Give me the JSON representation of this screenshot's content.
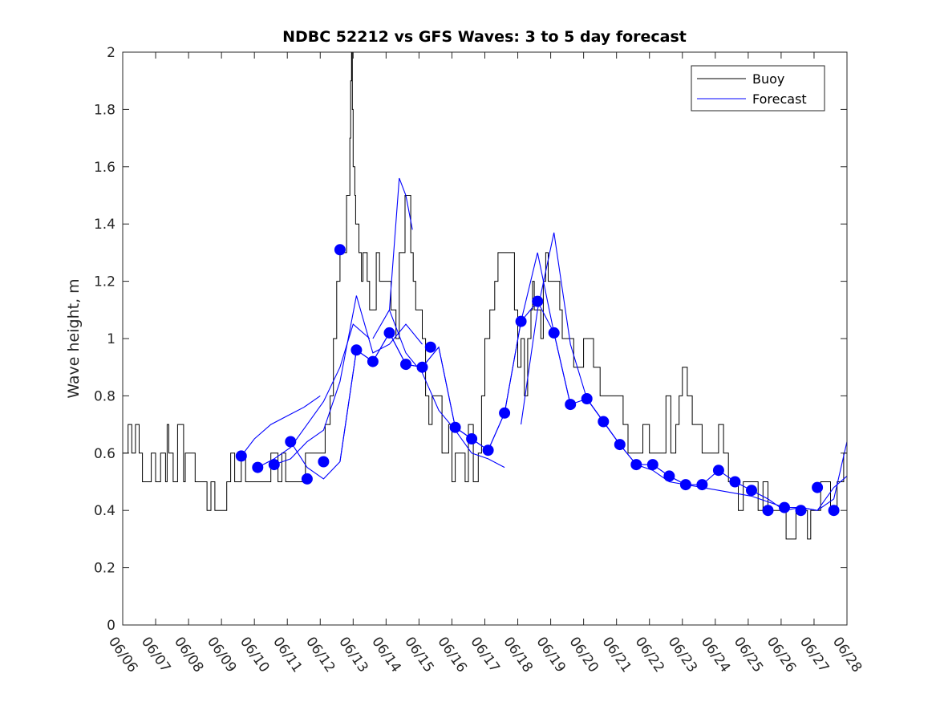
{
  "chart_data": {
    "type": "line",
    "title": "NDBC 52212 vs GFS Waves: 3 to 5 day forecast",
    "xlabel": "",
    "ylabel": "Wave height, m",
    "xlim": [
      "06/06",
      "06/28"
    ],
    "ylim": [
      0,
      2
    ],
    "yticks": [
      0,
      0.2,
      0.4,
      0.6,
      0.8,
      1,
      1.2,
      1.4,
      1.6,
      1.8,
      2
    ],
    "ytick_labels": [
      "0",
      "0.2",
      "0.4",
      "0.6",
      "0.8",
      "1",
      "1.2",
      "1.4",
      "1.6",
      "1.8",
      "2"
    ],
    "xtick_labels": [
      "06/06",
      "06/07",
      "06/08",
      "06/09",
      "06/10",
      "06/11",
      "06/12",
      "06/13",
      "06/14",
      "06/15",
      "06/16",
      "06/17",
      "06/18",
      "06/19",
      "06/20",
      "06/21",
      "06/22",
      "06/23",
      "06/24",
      "06/25",
      "06/26",
      "06/27",
      "06/28"
    ],
    "grid": false,
    "legend": {
      "position": "top-right",
      "entries": [
        "Buoy",
        "Forecast"
      ]
    },
    "colors": {
      "buoy": "#000000",
      "forecast": "#0000ff",
      "markers": "#0000ff"
    },
    "buoy": {
      "name": "Buoy",
      "x_day": [
        0,
        0.05,
        0.5,
        0.6,
        1.0,
        1.3,
        1.4,
        1.8,
        1.9,
        2.2,
        2.8,
        3.4,
        3.6,
        4.4,
        4.6,
        5.3,
        5.8,
        6.0,
        6.3,
        6.5,
        6.7,
        6.9,
        6.95,
        7.0,
        7.05,
        7.1,
        7.25,
        7.35,
        7.5,
        7.7,
        7.9,
        8.0,
        8.3,
        8.5,
        8.65,
        8.75,
        8.9,
        9.1,
        9.3,
        9.5,
        9.7,
        9.9,
        10.1,
        10.3,
        10.5,
        10.8,
        11.0,
        11.3,
        11.5,
        11.8,
        12.0,
        12.2,
        12.4,
        12.5,
        12.7,
        12.85,
        13.0,
        13.2,
        13.35,
        13.5,
        13.7,
        13.9,
        14.1,
        14.3,
        14.5,
        14.7,
        14.9,
        15.2,
        15.5,
        15.8,
        16.0,
        16.2,
        16.5,
        16.8,
        17.0,
        17.3,
        17.6,
        17.9,
        18.1,
        18.4,
        18.7,
        19.0,
        19.3,
        19.6,
        20.0,
        20.3,
        20.6,
        20.8,
        21.0,
        21.2,
        21.4,
        21.6,
        21.8,
        22.0
      ],
      "values": [
        0.6,
        0.7,
        0.6,
        0.5,
        0.6,
        0.5,
        0.6,
        0.7,
        0.6,
        0.5,
        0.4,
        0.5,
        0.5,
        0.5,
        0.6,
        0.5,
        0.6,
        0.6,
        0.8,
        1.2,
        1.4,
        1.7,
        2.0,
        1.6,
        1.5,
        1.4,
        1.2,
        1.3,
        1.1,
        1.3,
        1.1,
        1.2,
        1.0,
        1.3,
        1.6,
        1.3,
        1.1,
        1.0,
        0.8,
        0.8,
        0.7,
        0.7,
        0.6,
        0.6,
        0.6,
        0.7,
        0.9,
        1.2,
        1.3,
        1.3,
        0.9,
        0.9,
        1.1,
        1.1,
        1.0,
        1.3,
        1.1,
        1.2,
        1.0,
        1.0,
        0.9,
        0.9,
        1.0,
        0.9,
        0.8,
        0.7,
        0.8,
        0.7,
        0.6,
        0.7,
        0.7,
        0.6,
        0.7,
        0.7,
        0.8,
        0.8,
        0.6,
        0.6,
        0.7,
        0.5,
        0.5,
        0.5,
        0.5,
        0.4,
        0.4,
        0.3,
        0.4,
        0.4,
        0.4,
        0.5,
        0.4,
        0.4,
        0.5,
        0.6
      ]
    },
    "forecast_runs": [
      {
        "x_day": [
          3.6,
          4.0,
          4.5,
          5.0,
          5.5,
          6.0
        ],
        "values": [
          0.59,
          0.65,
          0.7,
          0.73,
          0.76,
          0.8
        ]
      },
      {
        "x_day": [
          4.1,
          4.6,
          5.1,
          5.6,
          6.1,
          6.6,
          7.0,
          7.5
        ],
        "values": [
          0.55,
          0.58,
          0.62,
          0.7,
          0.78,
          0.9,
          1.05,
          1.0
        ]
      },
      {
        "x_day": [
          4.6,
          5.1,
          5.6,
          6.1,
          6.6,
          7.1,
          7.6,
          8.1,
          8.6,
          9.1
        ],
        "values": [
          0.56,
          0.58,
          0.64,
          0.68,
          0.85,
          1.15,
          0.95,
          0.98,
          1.05,
          0.98
        ]
      },
      {
        "x_day": [
          5.1,
          5.6,
          6.1,
          6.6,
          7.1,
          7.6,
          8.1,
          8.6,
          9.1,
          9.6
        ],
        "values": [
          0.64,
          0.55,
          0.51,
          0.57,
          0.96,
          0.92,
          1.02,
          0.91,
          0.9,
          0.97
        ]
      },
      {
        "x_day": [
          6.6,
          7.1,
          7.6,
          8.1,
          8.6,
          9.1,
          9.6,
          10.1,
          10.6,
          11.1
        ],
        "values": [
          0.57,
          0.96,
          0.92,
          1.02,
          0.91,
          0.9,
          0.97,
          0.69,
          0.65,
          0.61
        ]
      },
      {
        "x_day": [
          7.6,
          8.1,
          8.6,
          9.1,
          9.6,
          10.1,
          10.6,
          11.1,
          11.6
        ],
        "values": [
          1.0,
          1.1,
          0.95,
          0.88,
          0.75,
          0.68,
          0.6,
          0.58,
          0.55
        ]
      },
      {
        "x_day": [
          8.1,
          8.4,
          8.6,
          8.8
        ],
        "values": [
          1.1,
          1.56,
          1.5,
          1.38
        ]
      },
      {
        "x_day": [
          9.6,
          10.1,
          10.6,
          11.1,
          11.6,
          12.1,
          12.6,
          13.1,
          13.6
        ],
        "values": [
          0.97,
          0.69,
          0.65,
          0.61,
          0.74,
          1.06,
          1.13,
          1.02,
          0.77
        ]
      },
      {
        "x_day": [
          11.1,
          11.6,
          12.1,
          12.6,
          13.1,
          13.6,
          14.1,
          14.6,
          15.1
        ],
        "values": [
          0.61,
          0.74,
          1.06,
          1.3,
          1.02,
          0.77,
          0.79,
          0.71,
          0.63
        ]
      },
      {
        "x_day": [
          12.1,
          12.6,
          13.1,
          13.6,
          14.1,
          14.6,
          15.1,
          15.6,
          16.1,
          16.6,
          17.1
        ],
        "values": [
          0.7,
          1.1,
          1.37,
          0.98,
          0.79,
          0.71,
          0.63,
          0.56,
          0.56,
          0.52,
          0.49
        ]
      },
      {
        "x_day": [
          14.1,
          14.6,
          15.1,
          15.6,
          16.1,
          16.6,
          17.1,
          17.6,
          18.1,
          18.6,
          19.1,
          19.6,
          20.1,
          20.6,
          21.1,
          21.6,
          22.0
        ],
        "values": [
          0.79,
          0.71,
          0.63,
          0.56,
          0.54,
          0.5,
          0.49,
          0.48,
          0.47,
          0.46,
          0.45,
          0.43,
          0.41,
          0.41,
          0.4,
          0.44,
          0.64
        ]
      },
      {
        "x_day": [
          16.1,
          16.6,
          17.1,
          17.6,
          18.1,
          18.6,
          19.1,
          19.6,
          20.1,
          20.6,
          21.1,
          21.6,
          22.0
        ],
        "values": [
          0.56,
          0.52,
          0.49,
          0.49,
          0.54,
          0.5,
          0.47,
          0.44,
          0.4,
          0.41,
          0.4,
          0.48,
          0.52
        ]
      }
    ],
    "forecast_points": {
      "x_day": [
        3.6,
        4.1,
        4.6,
        5.1,
        5.6,
        6.1,
        6.6,
        7.1,
        7.6,
        8.1,
        8.6,
        9.1,
        9.35,
        10.1,
        10.6,
        11.1,
        11.6,
        12.1,
        12.6,
        13.1,
        13.6,
        14.1,
        14.6,
        15.1,
        15.6,
        16.1,
        16.6,
        17.1,
        17.6,
        18.1,
        18.6,
        19.1,
        19.6,
        20.1,
        20.6,
        21.1,
        21.6
      ],
      "values": [
        0.59,
        0.55,
        0.56,
        0.64,
        0.51,
        0.57,
        1.31,
        0.96,
        0.92,
        1.02,
        0.91,
        0.9,
        0.97,
        0.69,
        0.65,
        0.61,
        0.74,
        1.06,
        1.13,
        1.02,
        0.77,
        0.79,
        0.71,
        0.63,
        0.56,
        0.56,
        0.52,
        0.49,
        0.49,
        0.54,
        0.5,
        0.47,
        0.4,
        0.41,
        0.4,
        0.48,
        0.4
      ]
    }
  }
}
